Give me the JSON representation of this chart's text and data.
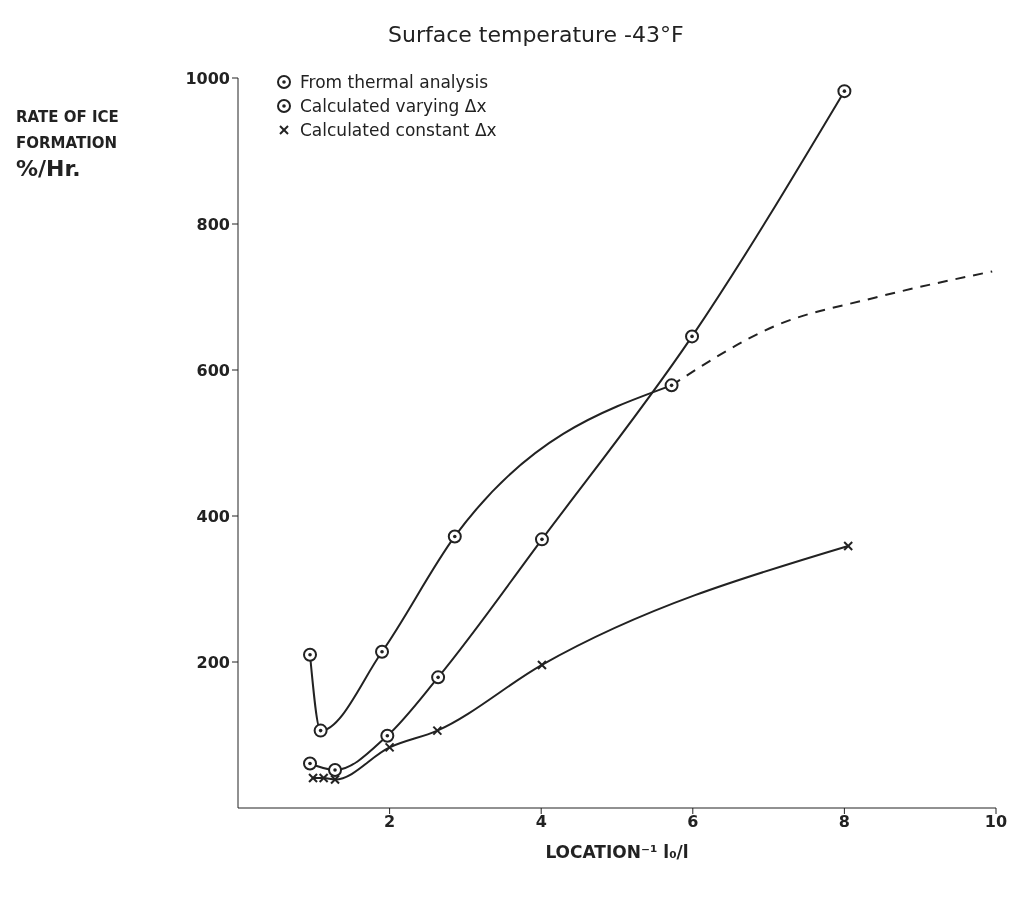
{
  "chart_data": {
    "type": "line",
    "title": "Surface temperature -43°F",
    "xlabel": "LOCATION⁻¹  l₀/l",
    "ylabel": "RATE OF ICE FORMATION %/Hr.",
    "xlim": [
      0,
      10
    ],
    "xticks": [
      2,
      4,
      6,
      8,
      10
    ],
    "ylim": [
      0,
      1000
    ],
    "yticks": [
      200,
      400,
      600,
      800,
      1000
    ],
    "grid": false,
    "legend": "top left",
    "series": [
      {
        "name": "From thermal analysis",
        "color": "#222222",
        "marker": "circle",
        "line_style": "solid",
        "x": [
          0.95,
          1.09,
          1.9,
          2.86,
          5.72
        ],
        "values": [
          210,
          106,
          214,
          372,
          579
        ]
      },
      {
        "color": "#222222",
        "marker": "none",
        "line_style": "dashed",
        "x": [
          5.72,
          7.1,
          8.4,
          9.95
        ],
        "values": [
          579,
          661,
          699,
          735
        ]
      },
      {
        "name": "Calculated varying Δx",
        "color": "#222222",
        "marker": "circle",
        "line_style": "solid",
        "x": [
          0.95,
          1.28,
          1.97,
          2.64,
          4.01,
          5.99,
          8.0
        ],
        "values": [
          61,
          52,
          99,
          179,
          368,
          646,
          982
        ]
      },
      {
        "name": "Calculated constant Δx",
        "color": "#222222",
        "marker": "cross",
        "line_style": "solid",
        "x": [
          0.99,
          1.13,
          1.28,
          2.0,
          2.63,
          4.01,
          8.05
        ],
        "values": [
          41,
          41,
          39,
          83,
          106,
          196,
          359
        ]
      }
    ]
  }
}
